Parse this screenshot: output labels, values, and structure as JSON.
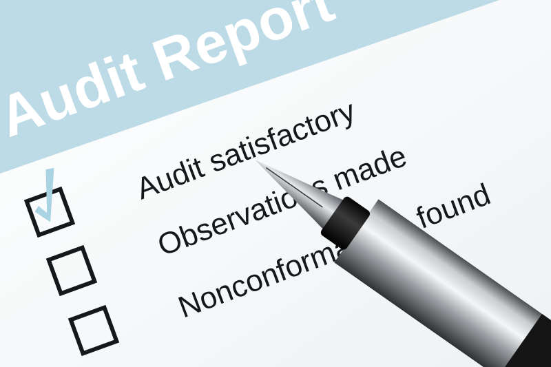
{
  "header": {
    "title": "Audit Report",
    "band_color": "#bcdbe6"
  },
  "checklist": [
    {
      "label": "Audit satisfactory",
      "checked": true
    },
    {
      "label": "Observations made",
      "checked": false
    },
    {
      "label": "Nonconformances found",
      "checked": false
    }
  ],
  "colors": {
    "check": "#a9d3e3",
    "ink": "#15171a"
  },
  "objects": [
    "fountain-pen"
  ]
}
